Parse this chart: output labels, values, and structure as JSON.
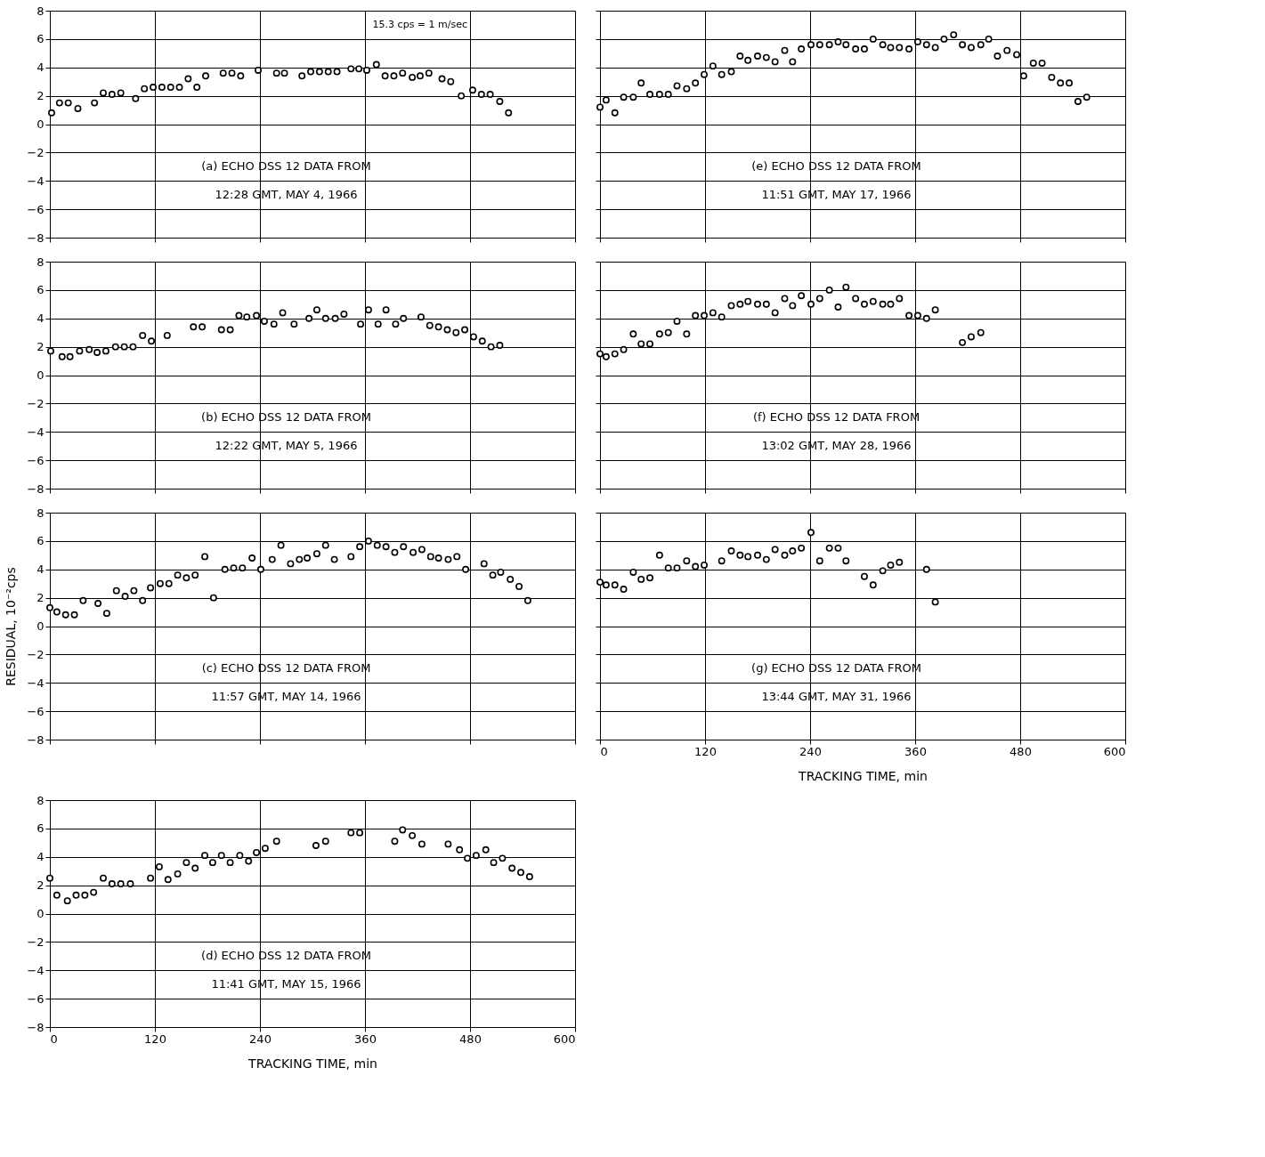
{
  "chart_data": [
    {
      "type": "scatter",
      "xlim": [
        0,
        600
      ],
      "xticks": [
        0,
        120,
        240,
        360,
        480,
        600
      ],
      "ylim": [
        -8,
        8
      ],
      "yticks": [
        -8,
        -6,
        -4,
        -2,
        0,
        2,
        4,
        6,
        8
      ],
      "grid": true,
      "marker": "circle",
      "tick_labels": "y",
      "annotations": [
        "15.3 cps = 1 m/sec",
        "(a) ECHO DSS 12 DATA FROM\n12:28 GMT, MAY 4, 1966"
      ],
      "series": [
        {
          "color": "#000000",
          "x": [
            2,
            11,
            21,
            32,
            51,
            61,
            71,
            81,
            98,
            108,
            118,
            128,
            138,
            148,
            158,
            168,
            178,
            198,
            208,
            218,
            238,
            259,
            268,
            288,
            298,
            308,
            318,
            328,
            344,
            353,
            362,
            373,
            383,
            393,
            403,
            414,
            423,
            433,
            448,
            458,
            470,
            483,
            493,
            503,
            514,
            524
          ],
          "values": [
            0.8,
            1.5,
            1.5,
            1.1,
            1.5,
            2.2,
            2.1,
            2.2,
            1.8,
            2.5,
            2.6,
            2.6,
            2.6,
            2.6,
            3.2,
            2.6,
            3.4,
            3.6,
            3.6,
            3.4,
            3.8,
            3.6,
            3.6,
            3.4,
            3.7,
            3.7,
            3.7,
            3.7,
            3.9,
            3.9,
            3.8,
            4.2,
            3.4,
            3.4,
            3.6,
            3.3,
            3.4,
            3.6,
            3.2,
            3.0,
            2.0,
            2.4,
            2.1,
            2.1,
            1.6,
            0.8
          ]
        }
      ]
    },
    {
      "type": "scatter",
      "xlim": [
        0,
        600
      ],
      "xticks": [
        0,
        120,
        240,
        360,
        480,
        600
      ],
      "ylim": [
        -8,
        8
      ],
      "yticks": [
        -8,
        -6,
        -4,
        -2,
        0,
        2,
        4,
        6,
        8
      ],
      "grid": true,
      "marker": "circle",
      "tick_labels": "y",
      "annotations": [
        "(b) ECHO DSS 12 DATA FROM\n12:22 GMT, MAY 5, 1966"
      ],
      "series": [
        {
          "color": "#000000",
          "x": [
            1,
            14,
            23,
            34,
            45,
            54,
            64,
            75,
            85,
            95,
            106,
            116,
            134,
            164,
            174,
            196,
            206,
            216,
            225,
            236,
            245,
            256,
            266,
            279,
            296,
            305,
            315,
            326,
            336,
            355,
            364,
            375,
            384,
            395,
            404,
            424,
            434,
            444,
            454,
            464,
            474,
            484,
            494,
            504,
            514
          ],
          "values": [
            1.7,
            1.3,
            1.3,
            1.7,
            1.8,
            1.6,
            1.7,
            2.0,
            2.0,
            2.0,
            2.8,
            2.4,
            2.8,
            3.4,
            3.4,
            3.2,
            3.2,
            4.2,
            4.1,
            4.2,
            3.8,
            3.6,
            4.4,
            3.6,
            4.0,
            4.6,
            4.0,
            4.0,
            4.3,
            3.6,
            4.6,
            3.6,
            4.6,
            3.6,
            4.0,
            4.1,
            3.5,
            3.4,
            3.2,
            3.0,
            3.2,
            2.7,
            2.4,
            2.0,
            2.1
          ]
        }
      ]
    },
    {
      "type": "scatter",
      "xlim": [
        0,
        600
      ],
      "xticks": [
        0,
        120,
        240,
        360,
        480,
        600
      ],
      "ylim": [
        -8,
        8
      ],
      "yticks": [
        -8,
        -6,
        -4,
        -2,
        0,
        2,
        4,
        6,
        8
      ],
      "grid": true,
      "marker": "circle",
      "tick_labels": "y",
      "ylabel": "RESIDUAL, 10⁻²cps",
      "annotations": [
        "(c) ECHO DSS 12 DATA FROM\n11:57 GMT, MAY 14, 1966"
      ],
      "series": [
        {
          "color": "#000000",
          "x": [
            0,
            8,
            18,
            28,
            38,
            55,
            65,
            76,
            86,
            96,
            106,
            115,
            126,
            136,
            146,
            156,
            166,
            177,
            187,
            200,
            210,
            220,
            231,
            241,
            254,
            264,
            275,
            285,
            294,
            305,
            315,
            325,
            344,
            354,
            364,
            374,
            384,
            394,
            404,
            415,
            425,
            435,
            444,
            455,
            465,
            475,
            496,
            506,
            515,
            526,
            536,
            546
          ],
          "values": [
            1.3,
            1.0,
            0.8,
            0.8,
            1.8,
            1.6,
            0.9,
            2.5,
            2.1,
            2.5,
            1.8,
            2.7,
            3.0,
            3.0,
            3.6,
            3.4,
            3.6,
            4.9,
            2.0,
            4.0,
            4.1,
            4.1,
            4.8,
            4.0,
            4.7,
            5.7,
            4.4,
            4.7,
            4.8,
            5.1,
            5.7,
            4.7,
            4.9,
            5.6,
            6.0,
            5.7,
            5.6,
            5.2,
            5.6,
            5.2,
            5.4,
            4.9,
            4.8,
            4.7,
            4.9,
            4.0,
            4.4,
            3.6,
            3.8,
            3.3,
            2.8,
            1.8
          ]
        }
      ]
    },
    {
      "type": "scatter",
      "xlim": [
        0,
        600
      ],
      "xticks": [
        0,
        120,
        240,
        360,
        480,
        600
      ],
      "ylim": [
        -8,
        8
      ],
      "yticks": [
        -8,
        -6,
        -4,
        -2,
        0,
        2,
        4,
        6,
        8
      ],
      "grid": true,
      "marker": "circle",
      "xlabel": "TRACKING TIME, min",
      "annotations": [
        "(d) ECHO DSS 12 DATA FROM\n11:41 GMT, MAY 15, 1966"
      ],
      "series": [
        {
          "color": "#000000",
          "x": [
            0,
            8,
            20,
            30,
            40,
            50,
            61,
            71,
            81,
            92,
            115,
            125,
            135,
            146,
            156,
            166,
            177,
            186,
            196,
            206,
            217,
            227,
            236,
            246,
            259,
            304,
            315,
            344,
            354,
            394,
            403,
            414,
            425,
            455,
            468,
            477,
            487,
            498,
            507,
            517,
            528,
            538,
            548
          ],
          "values": [
            2.5,
            1.3,
            0.9,
            1.3,
            1.3,
            1.5,
            2.5,
            2.1,
            2.1,
            2.1,
            2.5,
            3.3,
            2.4,
            2.8,
            3.6,
            3.2,
            4.1,
            3.6,
            4.1,
            3.6,
            4.1,
            3.7,
            4.3,
            4.6,
            5.1,
            4.8,
            5.1,
            5.7,
            5.7,
            5.1,
            5.9,
            5.5,
            4.9,
            4.9,
            4.5,
            3.9,
            4.1,
            4.5,
            3.6,
            3.9,
            3.2,
            2.9,
            2.6
          ]
        }
      ]
    },
    {
      "type": "scatter",
      "xlim": [
        0,
        600
      ],
      "xticks": [
        0,
        120,
        240,
        360,
        480,
        600
      ],
      "ylim": [
        -8,
        8
      ],
      "yticks": [
        -8,
        -6,
        -4,
        -2,
        0,
        2,
        4,
        6,
        8
      ],
      "grid": true,
      "marker": "circle",
      "tick_labels": false,
      "annotations": [
        "(e) ECHO DSS 12 DATA FROM\n11:51 GMT, MAY 17, 1966"
      ],
      "series": [
        {
          "color": "#000000",
          "x": [
            0,
            7,
            17,
            27,
            38,
            47,
            57,
            68,
            78,
            88,
            99,
            109,
            119,
            129,
            139,
            150,
            160,
            169,
            180,
            190,
            200,
            211,
            220,
            230,
            241,
            251,
            262,
            272,
            281,
            292,
            302,
            312,
            323,
            332,
            342,
            353,
            363,
            373,
            383,
            393,
            404,
            414,
            424,
            435,
            444,
            454,
            465,
            476,
            484,
            495,
            505,
            516,
            526,
            536,
            546,
            556
          ],
          "values": [
            1.2,
            1.7,
            0.8,
            1.9,
            1.9,
            2.9,
            2.1,
            2.1,
            2.1,
            2.7,
            2.5,
            2.9,
            3.5,
            4.1,
            3.5,
            3.7,
            4.8,
            4.5,
            4.8,
            4.7,
            4.4,
            5.2,
            4.4,
            5.3,
            5.6,
            5.6,
            5.6,
            5.8,
            5.6,
            5.3,
            5.3,
            6.0,
            5.6,
            5.4,
            5.4,
            5.3,
            5.8,
            5.6,
            5.4,
            6.0,
            6.3,
            5.6,
            5.4,
            5.6,
            6.0,
            4.8,
            5.2,
            4.9,
            3.4,
            4.3,
            4.3,
            3.3,
            2.9,
            2.9,
            1.6,
            1.9
          ]
        }
      ]
    },
    {
      "type": "scatter",
      "xlim": [
        0,
        600
      ],
      "xticks": [
        0,
        120,
        240,
        360,
        480,
        600
      ],
      "ylim": [
        -8,
        8
      ],
      "yticks": [
        -8,
        -6,
        -4,
        -2,
        0,
        2,
        4,
        6,
        8
      ],
      "grid": true,
      "marker": "circle",
      "tick_labels": false,
      "annotations": [
        "(f) ECHO DSS 12 DATA FROM\n13:02 GMT, MAY 28, 1966"
      ],
      "series": [
        {
          "color": "#000000",
          "x": [
            0,
            7,
            17,
            27,
            38,
            47,
            57,
            68,
            78,
            88,
            99,
            109,
            119,
            129,
            139,
            150,
            160,
            169,
            180,
            190,
            200,
            211,
            220,
            230,
            241,
            251,
            262,
            272,
            281,
            292,
            302,
            312,
            323,
            332,
            342,
            353,
            363,
            373,
            383,
            414,
            424,
            435
          ],
          "values": [
            1.5,
            1.3,
            1.5,
            1.8,
            2.9,
            2.2,
            2.2,
            2.9,
            3.0,
            3.8,
            2.9,
            4.2,
            4.2,
            4.4,
            4.1,
            4.9,
            5.0,
            5.2,
            5.0,
            5.0,
            4.4,
            5.4,
            4.9,
            5.6,
            5.0,
            5.4,
            6.0,
            4.8,
            6.2,
            5.4,
            5.0,
            5.2,
            5.0,
            5.0,
            5.4,
            4.2,
            4.2,
            4.0,
            4.6,
            2.3,
            2.7,
            3.0
          ]
        }
      ]
    },
    {
      "type": "scatter",
      "xlim": [
        0,
        600
      ],
      "xticks": [
        0,
        120,
        240,
        360,
        480,
        600
      ],
      "ylim": [
        -8,
        8
      ],
      "yticks": [
        -8,
        -6,
        -4,
        -2,
        0,
        2,
        4,
        6,
        8
      ],
      "grid": true,
      "marker": "circle",
      "tick_labels": "x",
      "xlabel": "TRACKING TIME, min",
      "annotations": [
        "(g) ECHO DSS 12 DATA FROM\n13:44 GMT, MAY 31, 1966"
      ],
      "series": [
        {
          "color": "#000000",
          "x": [
            0,
            7,
            17,
            27,
            38,
            47,
            57,
            68,
            78,
            88,
            99,
            109,
            119,
            139,
            150,
            160,
            169,
            180,
            190,
            200,
            211,
            220,
            230,
            241,
            251,
            262,
            272,
            281,
            302,
            312,
            323,
            332,
            342,
            373,
            383
          ],
          "values": [
            3.1,
            2.9,
            2.9,
            2.6,
            3.8,
            3.3,
            3.4,
            5.0,
            4.1,
            4.1,
            4.6,
            4.2,
            4.3,
            4.6,
            5.3,
            5.0,
            4.9,
            5.0,
            4.7,
            5.4,
            5.0,
            5.3,
            5.5,
            6.6,
            4.6,
            5.5,
            5.5,
            4.6,
            3.5,
            2.9,
            3.9,
            4.3,
            4.5,
            4.0,
            1.7
          ]
        }
      ]
    }
  ]
}
